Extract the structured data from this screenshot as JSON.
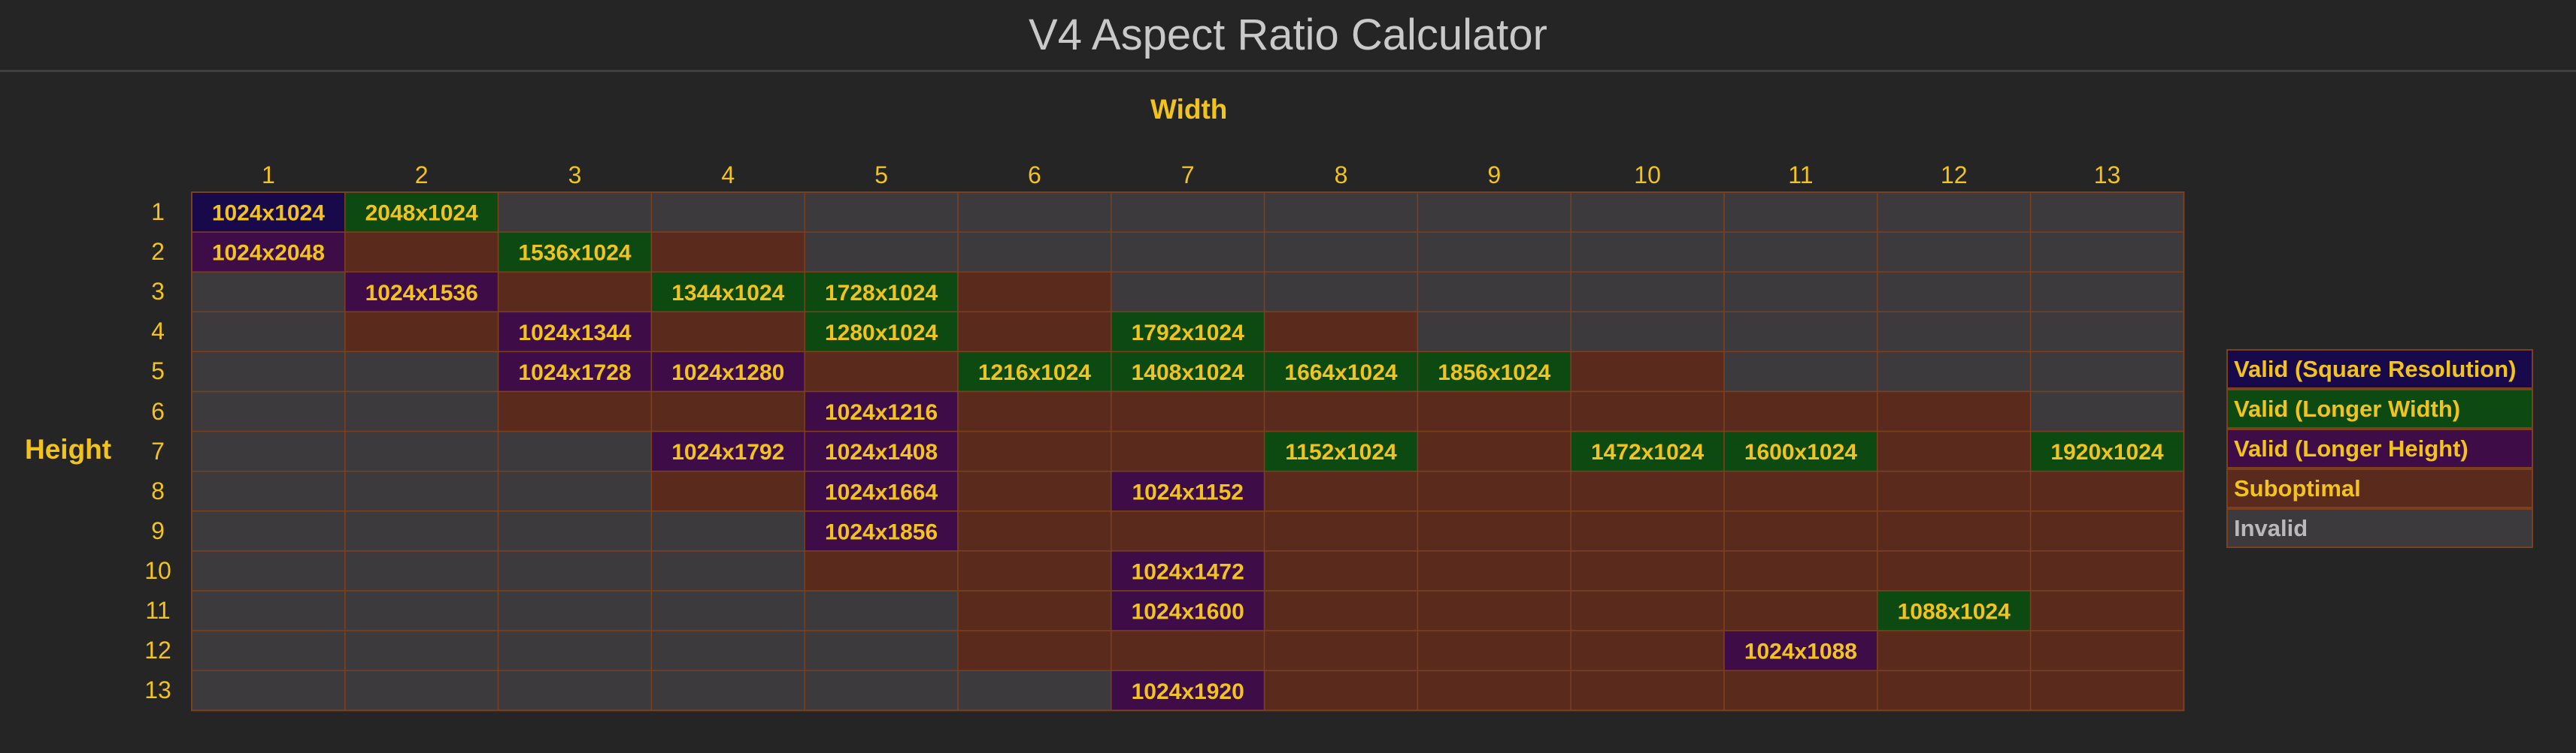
{
  "title": "V4 Aspect Ratio Calculator",
  "axis": {
    "x_label": "Width",
    "y_label": "Height"
  },
  "colors": {
    "square": "#180a4a",
    "longer_width": "#0d4a12",
    "longer_height": "#3e0d48",
    "suboptimal": "#5a2a1c",
    "invalid": "#3c3a3c",
    "grid_line": "#7a4020",
    "text": "#f2c31c"
  },
  "legend": [
    {
      "key": "square",
      "label": "Valid (Square Resolution)"
    },
    {
      "key": "longer_width",
      "label": "Valid (Longer Width)"
    },
    {
      "key": "longer_height",
      "label": "Valid (Longer Height)"
    },
    {
      "key": "suboptimal",
      "label": "Suboptimal"
    },
    {
      "key": "invalid",
      "label": "Invalid"
    }
  ],
  "chart_data": {
    "type": "table",
    "title": "V4 Aspect Ratio Calculator",
    "xlabel": "Width",
    "ylabel": "Height",
    "columns": [
      "1",
      "2",
      "3",
      "4",
      "5",
      "6",
      "7",
      "8",
      "9",
      "10",
      "11",
      "12",
      "13"
    ],
    "rows": [
      "1",
      "2",
      "3",
      "4",
      "5",
      "6",
      "7",
      "8",
      "9",
      "10",
      "11",
      "12",
      "13"
    ],
    "legend_placement": "right",
    "cells": [
      [
        "square",
        "longer_width",
        "invalid",
        "invalid",
        "invalid",
        "invalid",
        "invalid",
        "invalid",
        "invalid",
        "invalid",
        "invalid",
        "invalid",
        "invalid"
      ],
      [
        "longer_height",
        "suboptimal",
        "longer_width",
        "suboptimal",
        "invalid",
        "invalid",
        "invalid",
        "invalid",
        "invalid",
        "invalid",
        "invalid",
        "invalid",
        "invalid"
      ],
      [
        "invalid",
        "longer_height",
        "suboptimal",
        "longer_width",
        "longer_width",
        "suboptimal",
        "invalid",
        "invalid",
        "invalid",
        "invalid",
        "invalid",
        "invalid",
        "invalid"
      ],
      [
        "invalid",
        "suboptimal",
        "longer_height",
        "suboptimal",
        "longer_width",
        "suboptimal",
        "longer_width",
        "suboptimal",
        "invalid",
        "invalid",
        "invalid",
        "invalid",
        "invalid"
      ],
      [
        "invalid",
        "invalid",
        "longer_height",
        "longer_height",
        "suboptimal",
        "longer_width",
        "longer_width",
        "longer_width",
        "longer_width",
        "suboptimal",
        "invalid",
        "invalid",
        "invalid"
      ],
      [
        "invalid",
        "invalid",
        "suboptimal",
        "suboptimal",
        "longer_height",
        "suboptimal",
        "suboptimal",
        "suboptimal",
        "suboptimal",
        "suboptimal",
        "suboptimal",
        "suboptimal",
        "invalid"
      ],
      [
        "invalid",
        "invalid",
        "invalid",
        "longer_height",
        "longer_height",
        "suboptimal",
        "suboptimal",
        "longer_width",
        "suboptimal",
        "longer_width",
        "longer_width",
        "suboptimal",
        "longer_width"
      ],
      [
        "invalid",
        "invalid",
        "invalid",
        "suboptimal",
        "longer_height",
        "suboptimal",
        "longer_height",
        "suboptimal",
        "suboptimal",
        "suboptimal",
        "suboptimal",
        "suboptimal",
        "suboptimal"
      ],
      [
        "invalid",
        "invalid",
        "invalid",
        "invalid",
        "longer_height",
        "suboptimal",
        "suboptimal",
        "suboptimal",
        "suboptimal",
        "suboptimal",
        "suboptimal",
        "suboptimal",
        "suboptimal"
      ],
      [
        "invalid",
        "invalid",
        "invalid",
        "invalid",
        "suboptimal",
        "suboptimal",
        "longer_height",
        "suboptimal",
        "suboptimal",
        "suboptimal",
        "suboptimal",
        "suboptimal",
        "suboptimal"
      ],
      [
        "invalid",
        "invalid",
        "invalid",
        "invalid",
        "invalid",
        "suboptimal",
        "longer_height",
        "suboptimal",
        "suboptimal",
        "suboptimal",
        "suboptimal",
        "longer_width",
        "suboptimal"
      ],
      [
        "invalid",
        "invalid",
        "invalid",
        "invalid",
        "invalid",
        "suboptimal",
        "suboptimal",
        "suboptimal",
        "suboptimal",
        "suboptimal",
        "longer_height",
        "suboptimal",
        "suboptimal"
      ],
      [
        "invalid",
        "invalid",
        "invalid",
        "invalid",
        "invalid",
        "invalid",
        "longer_height",
        "suboptimal",
        "suboptimal",
        "suboptimal",
        "suboptimal",
        "suboptimal",
        "suboptimal"
      ]
    ],
    "labels": [
      [
        "1024x1024",
        "2048x1024",
        "",
        "",
        "",
        "",
        "",
        "",
        "",
        "",
        "",
        "",
        ""
      ],
      [
        "1024x2048",
        "",
        "1536x1024",
        "",
        "",
        "",
        "",
        "",
        "",
        "",
        "",
        "",
        ""
      ],
      [
        "",
        "1024x1536",
        "",
        "1344x1024",
        "1728x1024",
        "",
        "",
        "",
        "",
        "",
        "",
        "",
        ""
      ],
      [
        "",
        "",
        "1024x1344",
        "",
        "1280x1024",
        "",
        "1792x1024",
        "",
        "",
        "",
        "",
        "",
        ""
      ],
      [
        "",
        "",
        "1024x1728",
        "1024x1280",
        "",
        "1216x1024",
        "1408x1024",
        "1664x1024",
        "1856x1024",
        "",
        "",
        "",
        ""
      ],
      [
        "",
        "",
        "",
        "",
        "1024x1216",
        "",
        "",
        "",
        "",
        "",
        "",
        "",
        ""
      ],
      [
        "",
        "",
        "",
        "1024x1792",
        "1024x1408",
        "",
        "",
        "1152x1024",
        "",
        "1472x1024",
        "1600x1024",
        "",
        "1920x1024"
      ],
      [
        "",
        "",
        "",
        "",
        "1024x1664",
        "",
        "1024x1152",
        "",
        "",
        "",
        "",
        "",
        ""
      ],
      [
        "",
        "",
        "",
        "",
        "1024x1856",
        "",
        "",
        "",
        "",
        "",
        "",
        "",
        ""
      ],
      [
        "",
        "",
        "",
        "",
        "",
        "",
        "1024x1472",
        "",
        "",
        "",
        "",
        "",
        ""
      ],
      [
        "",
        "",
        "",
        "",
        "",
        "",
        "1024x1600",
        "",
        "",
        "",
        "",
        "1088x1024",
        ""
      ],
      [
        "",
        "",
        "",
        "",
        "",
        "",
        "",
        "",
        "",
        "",
        "1024x1088",
        "",
        ""
      ],
      [
        "",
        "",
        "",
        "",
        "",
        "",
        "1024x1920",
        "",
        "",
        "",
        "",
        "",
        ""
      ]
    ]
  }
}
